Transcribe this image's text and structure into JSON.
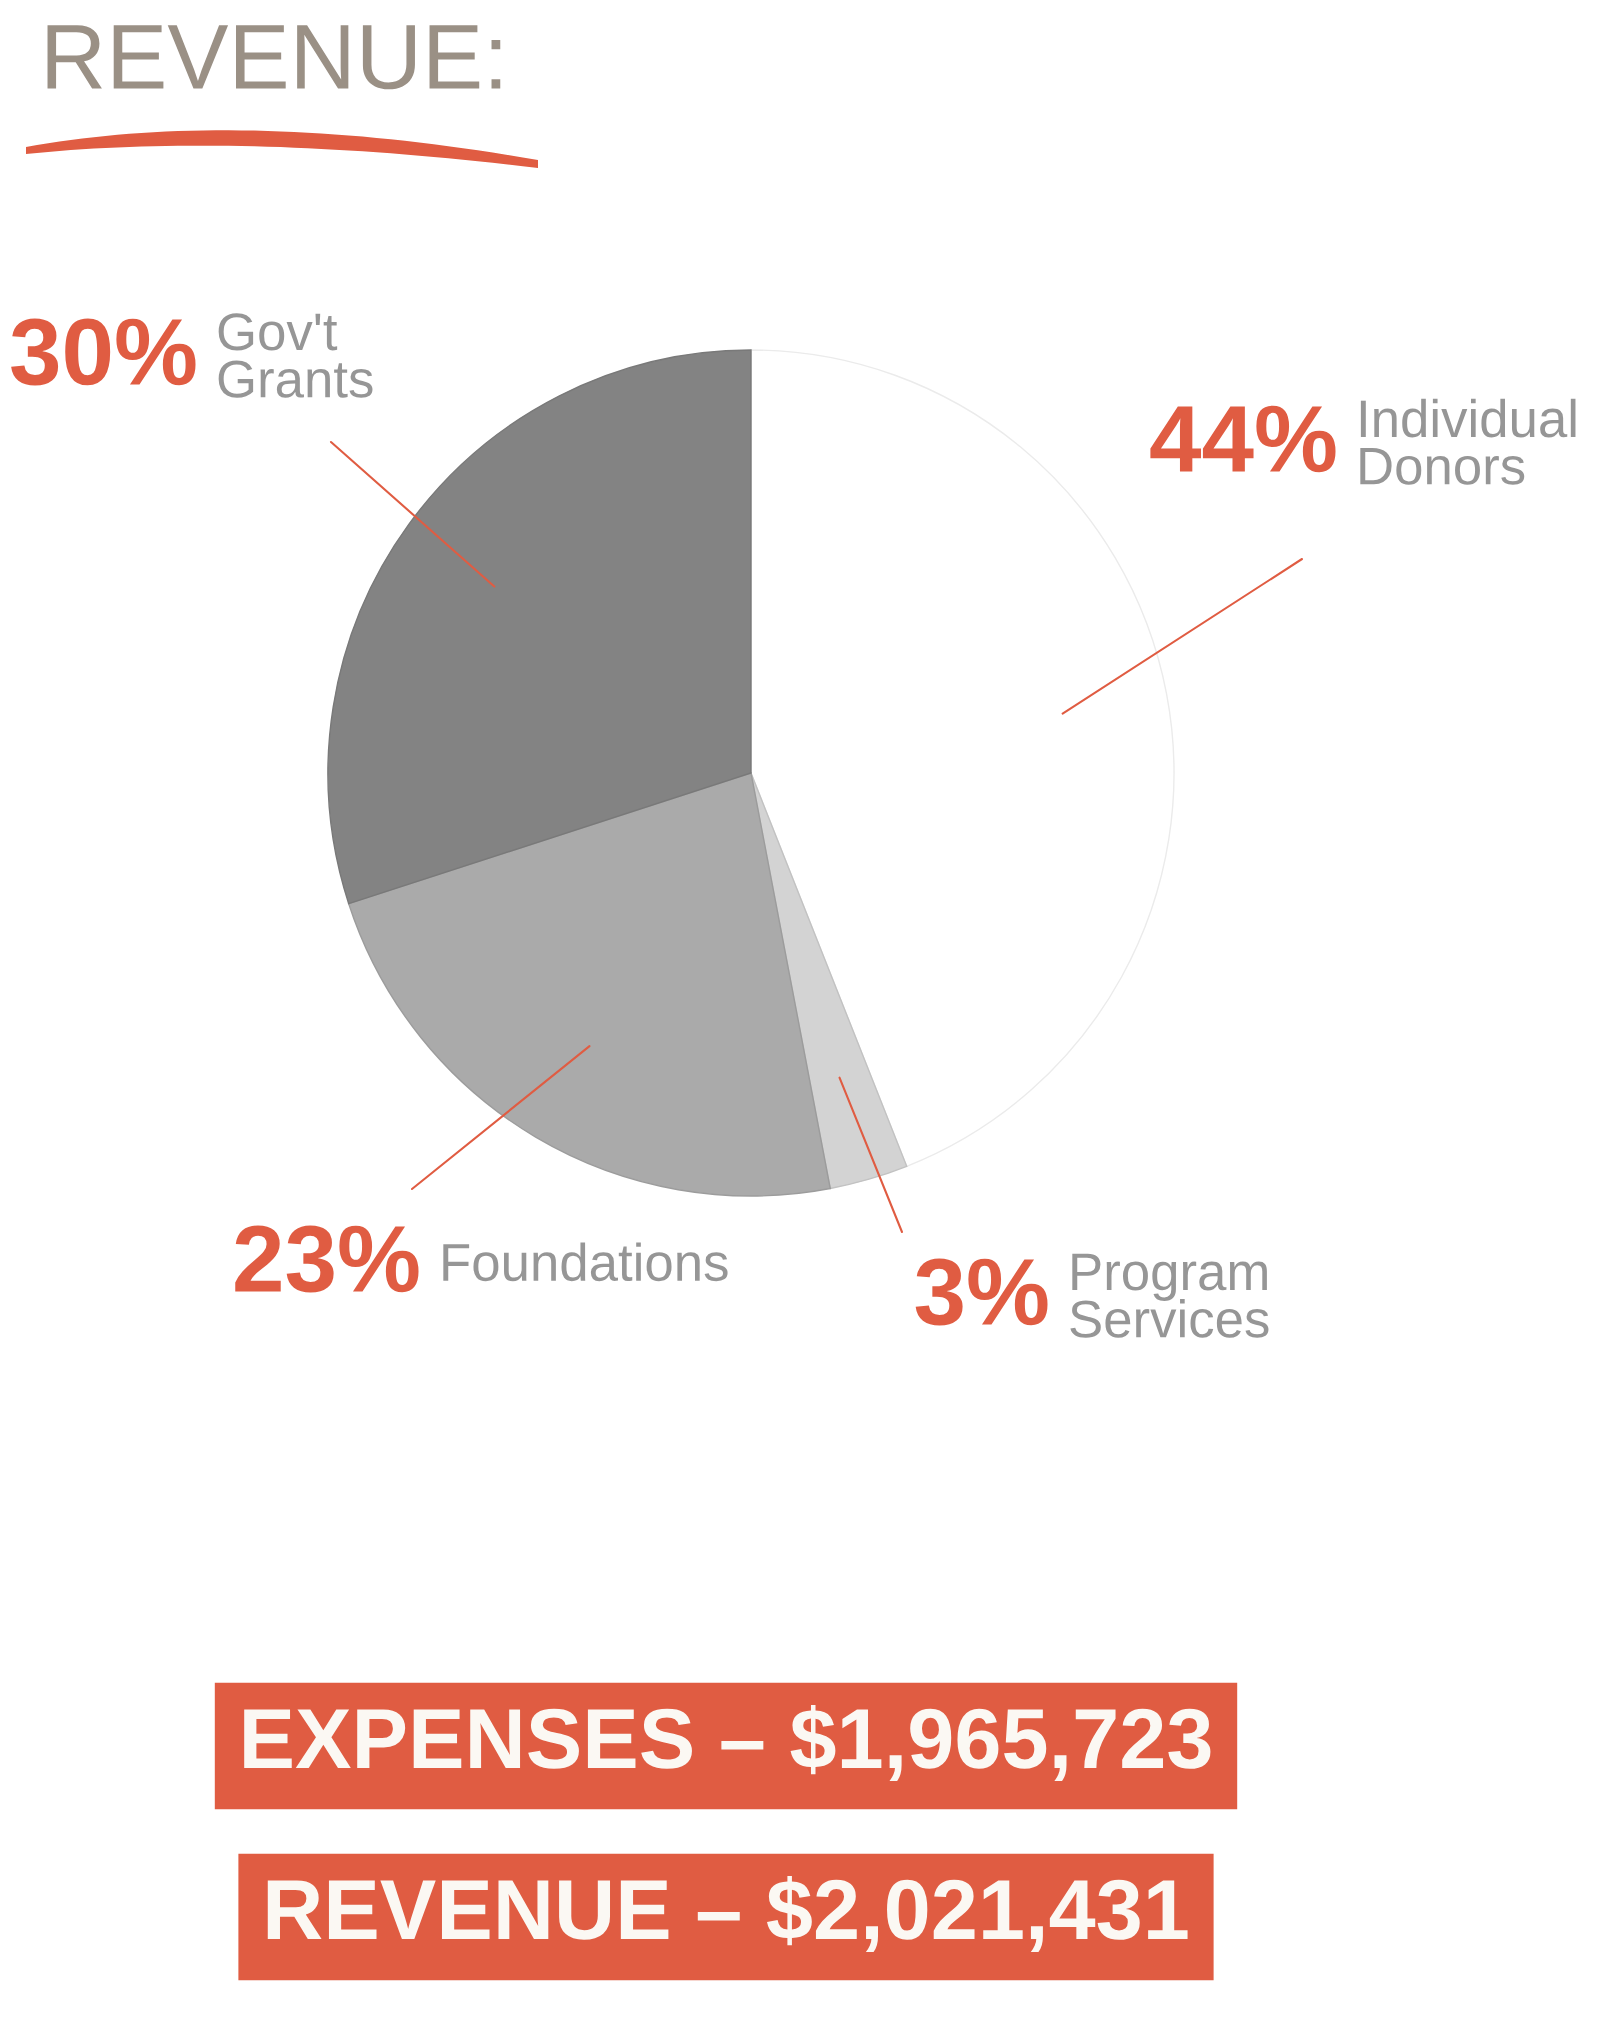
{
  "chart_data": {
    "type": "pie",
    "title": "REVENUE:",
    "categories": [
      "Individual Donors",
      "Program Services",
      "Foundations",
      "Gov't Grants"
    ],
    "values": [
      44,
      3,
      23,
      30
    ],
    "colors": [
      "#ffffff",
      "#d3d3d3",
      "#aaaaaa",
      "#838383"
    ],
    "value_labels": [
      "44%",
      "3%",
      "23%",
      "30%"
    ],
    "annotations": [
      "EXPENSES – $1,965,723",
      "REVENUE – $2,021,431"
    ]
  }
}
